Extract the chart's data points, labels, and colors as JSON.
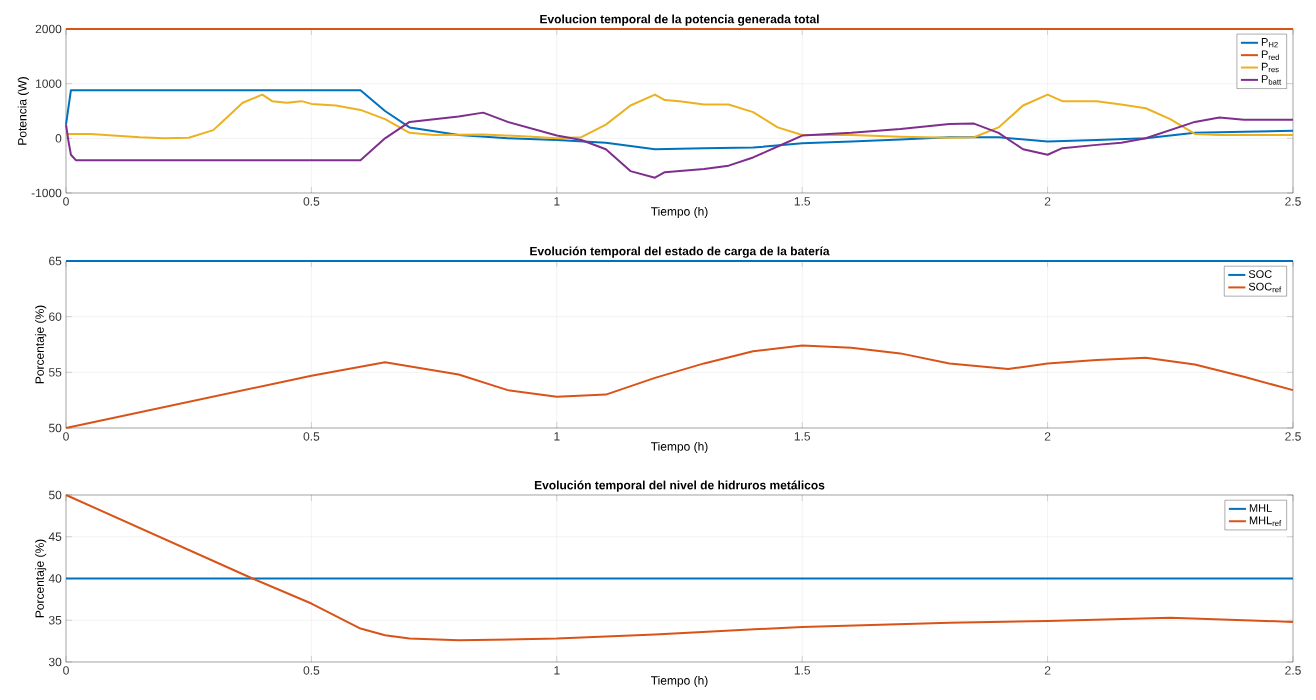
{
  "chart_data": [
    {
      "type": "line",
      "title": "Evolucion temporal de la potencia generada total",
      "xlabel": "Tiempo (h)",
      "ylabel": "Potencia (W)",
      "xlim": [
        0,
        2.5
      ],
      "ylim": [
        -1000,
        2000
      ],
      "xticks": [
        0,
        0.5,
        1,
        1.5,
        2,
        2.5
      ],
      "yticks": [
        -1000,
        0,
        1000,
        2000
      ],
      "grid": true,
      "legend": "top right",
      "series": [
        {
          "name": "P$_{H2}$",
          "color": "#0072bd",
          "x": [
            0,
            0.01,
            0.6,
            0.65,
            0.7,
            0.8,
            0.9,
            1.0,
            1.1,
            1.2,
            1.3,
            1.4,
            1.5,
            1.6,
            1.7,
            1.8,
            1.9,
            2.0,
            2.1,
            2.2,
            2.3,
            2.4,
            2.5
          ],
          "values": [
            250,
            880,
            880,
            500,
            200,
            60,
            0,
            -30,
            -80,
            -200,
            -180,
            -170,
            -90,
            -60,
            -20,
            20,
            20,
            -60,
            -30,
            0,
            100,
            120,
            140
          ]
        },
        {
          "name": "P$_{red}$",
          "color": "#d95319",
          "x": [
            0,
            2.5
          ],
          "values": [
            2000,
            2000
          ]
        },
        {
          "name": "P$_{res}$",
          "color": "#edb120",
          "x": [
            0,
            0.05,
            0.1,
            0.15,
            0.2,
            0.25,
            0.3,
            0.33,
            0.36,
            0.4,
            0.42,
            0.45,
            0.48,
            0.5,
            0.55,
            0.6,
            0.65,
            0.7,
            0.75,
            0.85,
            0.95,
            1.0,
            1.05,
            1.1,
            1.15,
            1.2,
            1.22,
            1.25,
            1.3,
            1.35,
            1.4,
            1.45,
            1.5,
            1.6,
            1.7,
            1.8,
            1.85,
            1.9,
            1.95,
            2.0,
            2.03,
            2.1,
            2.15,
            2.2,
            2.25,
            2.3,
            2.35,
            2.4,
            2.5
          ],
          "values": [
            80,
            80,
            50,
            20,
            0,
            10,
            150,
            400,
            650,
            800,
            680,
            650,
            680,
            630,
            600,
            520,
            350,
            100,
            60,
            70,
            30,
            0,
            20,
            250,
            600,
            800,
            700,
            680,
            620,
            620,
            480,
            200,
            60,
            60,
            30,
            10,
            20,
            200,
            600,
            800,
            680,
            680,
            620,
            550,
            350,
            80,
            60,
            60,
            60
          ]
        },
        {
          "name": "P$_{batt}$",
          "color": "#7e2f8e",
          "x": [
            0,
            0.005,
            0.01,
            0.02,
            0.6,
            0.65,
            0.7,
            0.8,
            0.85,
            0.9,
            1.0,
            1.05,
            1.1,
            1.15,
            1.2,
            1.22,
            1.3,
            1.35,
            1.4,
            1.45,
            1.5,
            1.6,
            1.7,
            1.8,
            1.85,
            1.9,
            1.95,
            2.0,
            2.03,
            2.1,
            2.15,
            2.2,
            2.3,
            2.35,
            2.4,
            2.5
          ],
          "values": [
            250,
            -50,
            -300,
            -400,
            -400,
            0,
            300,
            400,
            470,
            300,
            50,
            -30,
            -200,
            -600,
            -720,
            -620,
            -560,
            -500,
            -350,
            -150,
            50,
            100,
            170,
            260,
            270,
            100,
            -200,
            -300,
            -180,
            -120,
            -80,
            0,
            300,
            380,
            340,
            340
          ]
        }
      ]
    },
    {
      "type": "line",
      "title": "Evolución temporal del estado de carga de la batería",
      "xlabel": "Tiempo (h)",
      "ylabel": "Porcentaje (%)",
      "xlim": [
        0,
        2.5
      ],
      "ylim": [
        50,
        65
      ],
      "xticks": [
        0,
        0.5,
        1,
        1.5,
        2,
        2.5
      ],
      "yticks": [
        50,
        55,
        60,
        65
      ],
      "grid": true,
      "legend": "top right",
      "series": [
        {
          "name": "SOC",
          "color": "#0072bd",
          "x": [
            0,
            2.5
          ],
          "values": [
            65,
            65
          ]
        },
        {
          "name": "SOC$_{ref}$",
          "color": "#d95319",
          "x": [
            0,
            0.5,
            0.65,
            0.8,
            0.9,
            1.0,
            1.1,
            1.2,
            1.3,
            1.4,
            1.5,
            1.6,
            1.7,
            1.8,
            1.92,
            2.0,
            2.1,
            2.2,
            2.3,
            2.4,
            2.5
          ],
          "values": [
            50,
            54.7,
            55.9,
            54.8,
            53.4,
            52.8,
            53.0,
            54.5,
            55.8,
            56.9,
            57.4,
            57.2,
            56.7,
            55.8,
            55.3,
            55.8,
            56.1,
            56.3,
            55.7,
            54.6,
            53.4
          ]
        }
      ]
    },
    {
      "type": "line",
      "title": "Evolución temporal del nivel de hidruros metálicos",
      "xlabel": "Tiempo (h)",
      "ylabel": "Porcentaje (%)",
      "xlim": [
        0,
        2.5
      ],
      "ylim": [
        30,
        50
      ],
      "xticks": [
        0,
        0.5,
        1,
        1.5,
        2,
        2.5
      ],
      "yticks": [
        30,
        35,
        40,
        45,
        50
      ],
      "grid": true,
      "legend": "top right",
      "series": [
        {
          "name": "MHL",
          "color": "#0072bd",
          "x": [
            0,
            2.5
          ],
          "values": [
            40,
            40
          ]
        },
        {
          "name": "MHL$_{ref}$",
          "color": "#d95319",
          "x": [
            0,
            0.38,
            0.5,
            0.6,
            0.65,
            0.7,
            0.8,
            1.0,
            1.2,
            1.5,
            1.8,
            2.0,
            2.25,
            2.4,
            2.5
          ],
          "values": [
            50,
            40,
            37,
            34,
            33.2,
            32.8,
            32.6,
            32.8,
            33.3,
            34.2,
            34.7,
            34.9,
            35.3,
            35.0,
            34.8
          ]
        }
      ]
    }
  ]
}
